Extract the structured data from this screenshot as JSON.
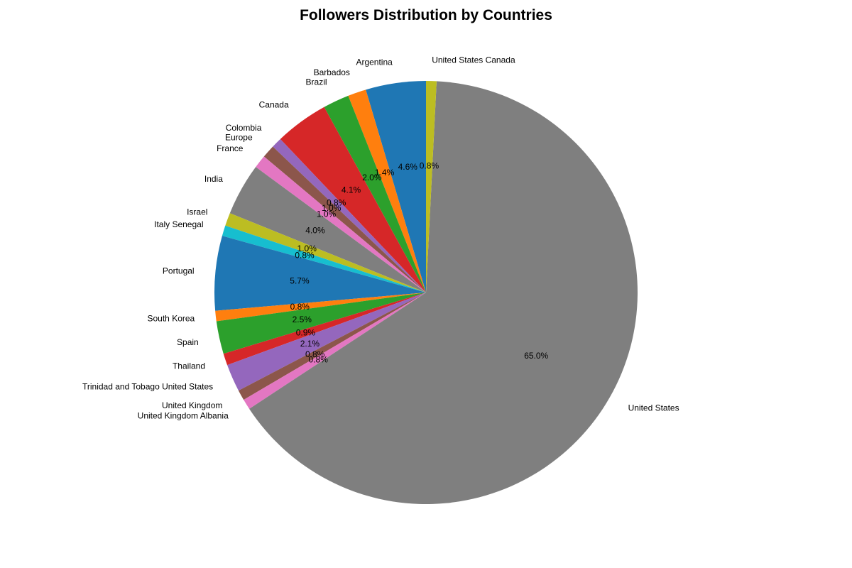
{
  "chart_data": {
    "type": "pie",
    "title": "Followers Distribution by Countries",
    "start_angle_deg": 90,
    "direction": "counterclockwise",
    "slices": [
      {
        "label": "Argentina",
        "value": 4.6,
        "pct_label": "4.6%",
        "color": "#1f77b4"
      },
      {
        "label": "Barbados",
        "value": 1.4,
        "pct_label": "1.4%",
        "color": "#ff7f0e"
      },
      {
        "label": "Brazil",
        "value": 2.0,
        "pct_label": "2.0%",
        "color": "#2ca02c"
      },
      {
        "label": "Canada",
        "value": 4.1,
        "pct_label": "4.1%",
        "color": "#d62728"
      },
      {
        "label": "Colombia",
        "value": 0.8,
        "pct_label": "0.8%",
        "color": "#9467bd"
      },
      {
        "label": "Europe",
        "value": 1.0,
        "pct_label": "1.0%",
        "color": "#8c564b"
      },
      {
        "label": "France",
        "value": 1.0,
        "pct_label": "1.0%",
        "color": "#e377c2"
      },
      {
        "label": "India",
        "value": 4.0,
        "pct_label": "4.0%",
        "color": "#7f7f7f"
      },
      {
        "label": "Israel",
        "value": 1.0,
        "pct_label": "1.0%",
        "color": "#bcbd22"
      },
      {
        "label": "Italy Senegal",
        "value": 0.8,
        "pct_label": "0.8%",
        "color": "#17becf"
      },
      {
        "label": "Portugal",
        "value": 5.7,
        "pct_label": "5.7%",
        "color": "#1f77b4"
      },
      {
        "label": "South Korea",
        "value": 0.8,
        "pct_label": "0.8%",
        "color": "#ff7f0e"
      },
      {
        "label": "Spain",
        "value": 2.5,
        "pct_label": "2.5%",
        "color": "#2ca02c"
      },
      {
        "label": "Thailand",
        "value": 0.9,
        "pct_label": "0.9%",
        "color": "#d62728"
      },
      {
        "label": "Trinidad and Tobago United States",
        "value": 2.1,
        "pct_label": "2.1%",
        "color": "#9467bd"
      },
      {
        "label": "United Kingdom",
        "value": 0.8,
        "pct_label": "0.8%",
        "color": "#8c564b"
      },
      {
        "label": "United Kingdom Albania",
        "value": 0.8,
        "pct_label": "0.8%",
        "color": "#e377c2"
      },
      {
        "label": "United States",
        "value": 65.0,
        "pct_label": "65.0%",
        "color": "#7f7f7f"
      },
      {
        "label": "United States Canada",
        "value": 0.8,
        "pct_label": "0.8%",
        "color": "#bcbd22"
      }
    ]
  }
}
